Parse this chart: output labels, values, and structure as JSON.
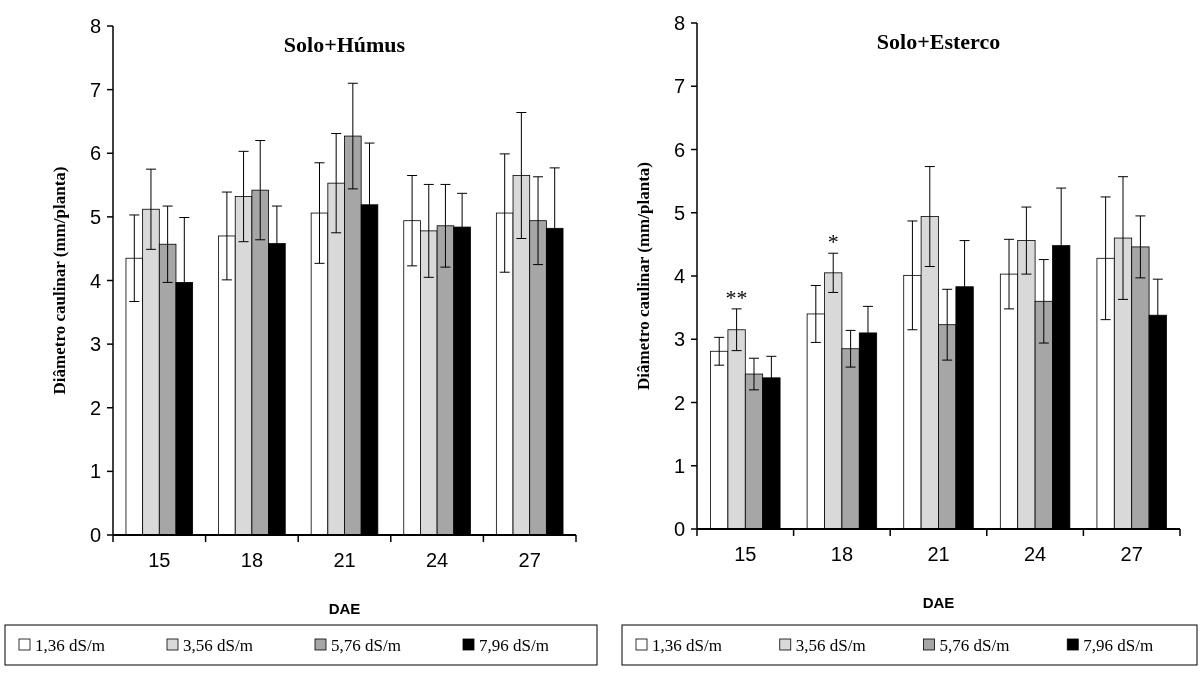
{
  "chart_data": [
    {
      "type": "bar",
      "title": "Solo+Húmus",
      "xlabel": "DAE",
      "ylabel": "Diâmetro caulinar (mm/planta)",
      "categories": [
        "15",
        "18",
        "21",
        "24",
        "27"
      ],
      "ylim": [
        0,
        8
      ],
      "yticks": [
        0,
        1,
        2,
        3,
        4,
        5,
        6,
        7,
        8
      ],
      "grid": false,
      "legend": "bottom",
      "series": [
        {
          "name": "1,36 dS/m",
          "color": "#ffffff",
          "values": [
            4.35,
            4.7,
            5.06,
            4.94,
            5.06
          ],
          "errors": [
            0.68,
            0.69,
            0.79,
            0.71,
            0.93
          ]
        },
        {
          "name": "3,56 dS/m",
          "color": "#d9d9d9",
          "values": [
            5.12,
            5.32,
            5.53,
            4.78,
            5.65
          ],
          "errors": [
            0.63,
            0.71,
            0.78,
            0.73,
            0.99
          ]
        },
        {
          "name": "5,76 dS/m",
          "color": "#a6a6a6",
          "values": [
            4.57,
            5.42,
            6.27,
            4.86,
            4.94
          ],
          "errors": [
            0.6,
            0.78,
            0.83,
            0.65,
            0.69
          ]
        },
        {
          "name": "7,96 dS/m",
          "color": "#000000",
          "values": [
            3.97,
            4.58,
            5.19,
            4.84,
            4.82
          ],
          "errors": [
            1.02,
            0.59,
            0.97,
            0.53,
            0.95
          ]
        }
      ]
    },
    {
      "type": "bar",
      "title": "Solo+Esterco",
      "xlabel": "DAE",
      "ylabel": "Diâmetro caulinar (mm/planta)",
      "categories": [
        "15",
        "18",
        "21",
        "24",
        "27"
      ],
      "ylim": [
        0,
        8
      ],
      "yticks": [
        0,
        1,
        2,
        3,
        4,
        5,
        6,
        7,
        8
      ],
      "grid": false,
      "legend": "bottom",
      "annotations": [
        "**",
        "*"
      ],
      "series": [
        {
          "name": "1,36 dS/m",
          "color": "#ffffff",
          "values": [
            2.81,
            3.4,
            4.01,
            4.03,
            4.28
          ],
          "errors": [
            0.22,
            0.45,
            0.86,
            0.55,
            0.97
          ]
        },
        {
          "name": "3,56 dS/m",
          "color": "#d9d9d9",
          "values": [
            3.15,
            4.05,
            4.94,
            4.56,
            4.6
          ],
          "errors": [
            0.33,
            0.31,
            0.79,
            0.53,
            0.97
          ]
        },
        {
          "name": "5,76 dS/m",
          "color": "#a6a6a6",
          "values": [
            2.45,
            2.85,
            3.23,
            3.6,
            4.46
          ],
          "errors": [
            0.25,
            0.29,
            0.56,
            0.66,
            0.49
          ]
        },
        {
          "name": "7,96 dS/m",
          "color": "#000000",
          "values": [
            2.39,
            3.1,
            3.83,
            4.48,
            3.38
          ],
          "errors": [
            0.34,
            0.42,
            0.73,
            0.91,
            0.57
          ]
        }
      ]
    }
  ]
}
